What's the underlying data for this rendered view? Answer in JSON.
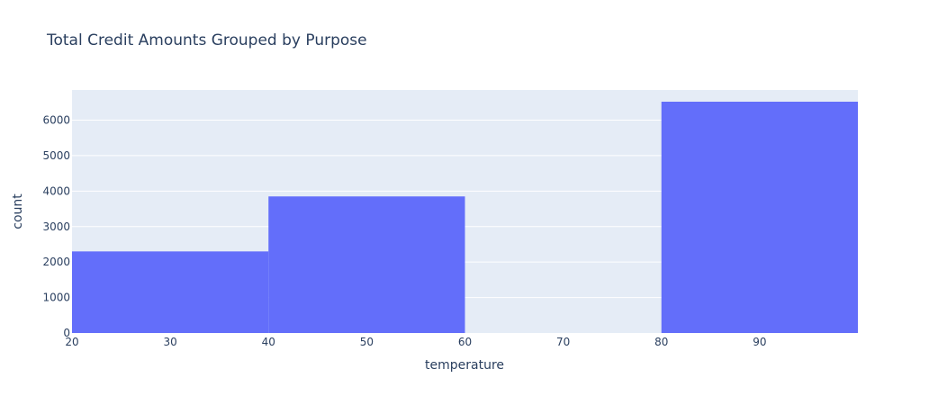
{
  "chart_data": {
    "type": "bar",
    "title": "Total Credit Amounts Grouped by Purpose",
    "xlabel": "temperature",
    "ylabel": "count",
    "x_ticks": [
      20,
      30,
      40,
      50,
      60,
      70,
      80,
      90
    ],
    "y_ticks": [
      0,
      1000,
      2000,
      3000,
      4000,
      5000,
      6000
    ],
    "xlim": [
      20,
      100
    ],
    "ylim": [
      0,
      6850
    ],
    "bins": [
      {
        "start": 20,
        "end": 40,
        "value": 2300
      },
      {
        "start": 40,
        "end": 60,
        "value": 3850
      },
      {
        "start": 60,
        "end": 80,
        "value": 0
      },
      {
        "start": 80,
        "end": 100,
        "value": 6520
      }
    ],
    "bar_color": "#636efa",
    "plot_bg_color": "#e5ecf6",
    "grid": true,
    "legend": "none"
  }
}
